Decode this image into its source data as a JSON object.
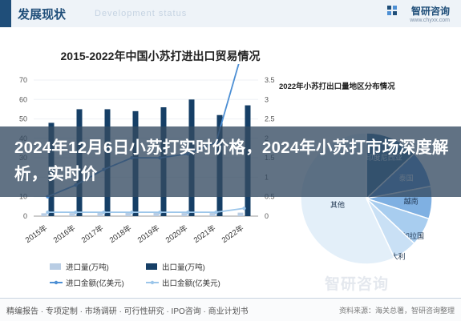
{
  "header": {
    "title": "发展现状",
    "subtitle": "Development status",
    "brand": "智研咨询",
    "url": "www.chyxx.com"
  },
  "banner": {
    "text": "2024年12月6日小苏打实时价格，2024年小苏打市场深度解析，实时价"
  },
  "footer": {
    "text": "精编报告 · 专项定制 · 市场调研 · 可行性研究 · IPO咨询 · 商业计划书",
    "source": "资料来源：海关总署，智研咨询整理",
    "watermark": "智研咨询"
  },
  "chart_data": [
    {
      "type": "bar",
      "title": "2015-2022年中国小苏打进出口贸易情况",
      "categories": [
        "2015年",
        "2016年",
        "2017年",
        "2018年",
        "2019年",
        "2020年",
        "2021年",
        "2022年"
      ],
      "series": [
        {
          "name": "进口量(万吨)",
          "kind": "bar",
          "color": "#b9cde4",
          "values": [
            1.5,
            1.6,
            1.7,
            1.8,
            1.7,
            1.6,
            1.7,
            1.8
          ]
        },
        {
          "name": "出口量(万吨)",
          "kind": "bar",
          "color": "#163f66",
          "values": [
            48,
            55,
            55,
            54,
            56,
            60,
            52,
            57
          ]
        },
        {
          "name": "进口金额(亿美元)",
          "kind": "line",
          "color": "#4d8fd4",
          "values": [
            0.5,
            0.8,
            1.2,
            1.5,
            1.5,
            1.6,
            1.9,
            4.4
          ]
        },
        {
          "name": "出口金额(亿美元)",
          "kind": "line",
          "color": "#9cc6ea",
          "values": [
            0.1,
            0.1,
            0.1,
            0.1,
            0.1,
            0.1,
            0.1,
            0.2
          ]
        }
      ],
      "ylim": [
        0,
        70
      ],
      "yticks": [
        0,
        10,
        20,
        30,
        40,
        50,
        60,
        70
      ],
      "y2lim": [
        0,
        3.5
      ],
      "y2ticks": [
        0,
        0.5,
        1,
        1.5,
        2,
        2.5,
        3,
        3.5
      ],
      "legend": "bottom"
    },
    {
      "type": "pie",
      "title": "2022年小苏打出口量地区分布情况",
      "slices": [
        {
          "label": "印度尼西亚",
          "value": 13,
          "color": "#2f6a98"
        },
        {
          "label": "泰国",
          "value": 9,
          "color": "#4d8fd4"
        },
        {
          "label": "越南",
          "value": 8,
          "color": "#7fb0e2"
        },
        {
          "label": "孟加拉国",
          "value": 7,
          "color": "#a8cdef"
        },
        {
          "label": "意大利",
          "value": 6,
          "color": "#c9e0f5"
        },
        {
          "label": "其他",
          "value": 57,
          "color": "#e3eff9"
        }
      ]
    }
  ]
}
